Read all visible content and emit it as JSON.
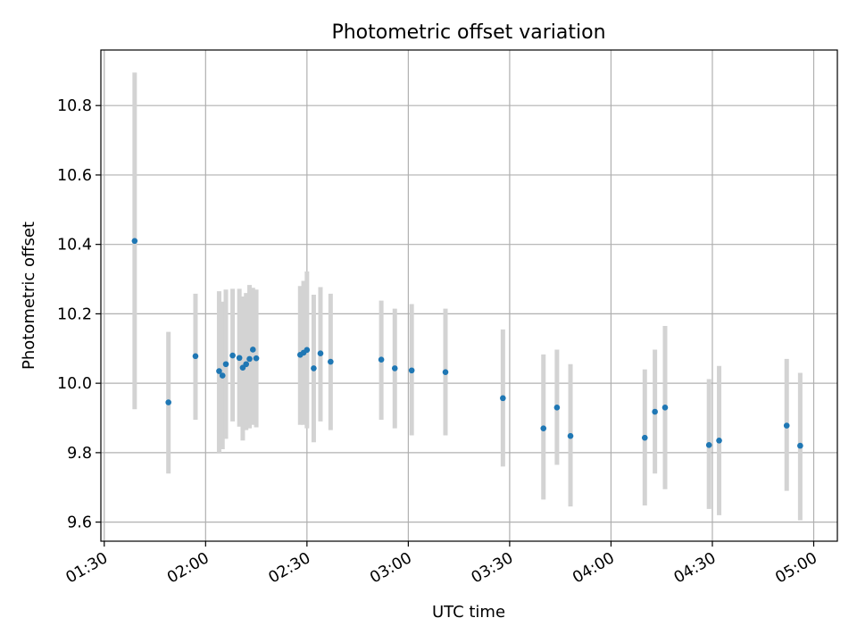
{
  "chart_data": {
    "type": "scatter",
    "title": "Photometric offset variation",
    "xlabel": "UTC time",
    "ylabel": "Photometric offset",
    "xlim": [
      "01:29",
      "05:07"
    ],
    "ylim": [
      9.545,
      10.96
    ],
    "x_ticks": [
      "01:30",
      "02:00",
      "02:30",
      "03:00",
      "03:30",
      "04:00",
      "04:30",
      "05:00"
    ],
    "y_ticks": [
      "9.6",
      "9.8",
      "10.0",
      "10.2",
      "10.4",
      "10.6",
      "10.8"
    ],
    "grid": true,
    "colors": {
      "points": "#1f77b4",
      "error_bars": "#d3d3d3",
      "grid": "#b0b0b0",
      "frame": "#000000"
    },
    "points": [
      {
        "t": "01:39",
        "y": 10.41,
        "lo": 9.925,
        "hi": 10.895
      },
      {
        "t": "01:49",
        "y": 9.945,
        "lo": 9.74,
        "hi": 10.148
      },
      {
        "t": "01:57",
        "y": 10.078,
        "lo": 9.895,
        "hi": 10.258
      },
      {
        "t": "02:04",
        "y": 10.035,
        "lo": 9.8,
        "hi": 10.265
      },
      {
        "t": "02:05",
        "y": 10.022,
        "lo": 9.81,
        "hi": 10.235
      },
      {
        "t": "02:06",
        "y": 10.055,
        "lo": 9.84,
        "hi": 10.27
      },
      {
        "t": "02:08",
        "y": 10.08,
        "lo": 9.89,
        "hi": 10.272
      },
      {
        "t": "02:10",
        "y": 10.073,
        "lo": 9.875,
        "hi": 10.272
      },
      {
        "t": "02:11",
        "y": 10.045,
        "lo": 9.835,
        "hi": 10.25
      },
      {
        "t": "02:12",
        "y": 10.055,
        "lo": 9.865,
        "hi": 10.26
      },
      {
        "t": "02:13",
        "y": 10.07,
        "lo": 9.87,
        "hi": 10.283
      },
      {
        "t": "02:14",
        "y": 10.097,
        "lo": 9.88,
        "hi": 10.275
      },
      {
        "t": "02:15",
        "y": 10.072,
        "lo": 9.873,
        "hi": 10.27
      },
      {
        "t": "02:28",
        "y": 10.082,
        "lo": 9.88,
        "hi": 10.28
      },
      {
        "t": "02:29",
        "y": 10.088,
        "lo": 9.88,
        "hi": 10.295
      },
      {
        "t": "02:30",
        "y": 10.096,
        "lo": 9.87,
        "hi": 10.322
      },
      {
        "t": "02:32",
        "y": 10.043,
        "lo": 9.83,
        "hi": 10.255
      },
      {
        "t": "02:34",
        "y": 10.086,
        "lo": 9.89,
        "hi": 10.277
      },
      {
        "t": "02:37",
        "y": 10.062,
        "lo": 9.865,
        "hi": 10.258
      },
      {
        "t": "02:52",
        "y": 10.068,
        "lo": 9.895,
        "hi": 10.238
      },
      {
        "t": "02:56",
        "y": 10.043,
        "lo": 9.87,
        "hi": 10.215
      },
      {
        "t": "03:01",
        "y": 10.037,
        "lo": 9.85,
        "hi": 10.228
      },
      {
        "t": "03:11",
        "y": 10.032,
        "lo": 9.85,
        "hi": 10.215
      },
      {
        "t": "03:28",
        "y": 9.957,
        "lo": 9.76,
        "hi": 10.155
      },
      {
        "t": "03:40",
        "y": 9.87,
        "lo": 9.665,
        "hi": 10.083
      },
      {
        "t": "03:44",
        "y": 9.93,
        "lo": 9.765,
        "hi": 10.097
      },
      {
        "t": "03:48",
        "y": 9.848,
        "lo": 9.645,
        "hi": 10.055
      },
      {
        "t": "04:10",
        "y": 9.843,
        "lo": 9.648,
        "hi": 10.04
      },
      {
        "t": "04:13",
        "y": 9.918,
        "lo": 9.74,
        "hi": 10.097
      },
      {
        "t": "04:16",
        "y": 9.93,
        "lo": 9.695,
        "hi": 10.165
      },
      {
        "t": "04:29",
        "y": 9.822,
        "lo": 9.638,
        "hi": 10.012
      },
      {
        "t": "04:32",
        "y": 9.835,
        "lo": 9.62,
        "hi": 10.05
      },
      {
        "t": "04:52",
        "y": 9.878,
        "lo": 9.69,
        "hi": 10.07
      },
      {
        "t": "04:56",
        "y": 9.82,
        "lo": 9.605,
        "hi": 10.03
      }
    ]
  }
}
